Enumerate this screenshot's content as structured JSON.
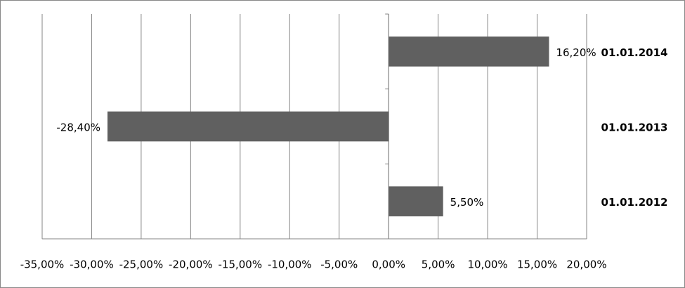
{
  "chart_data": {
    "type": "hbar",
    "categories": [
      "01.01.2012",
      "01.01.2013",
      "01.01.2014"
    ],
    "values": [
      5.5,
      -28.4,
      16.2
    ],
    "value_labels": [
      "5,50%",
      "-28,40%",
      "16,20%"
    ],
    "color": "#606060",
    "xlim": [
      -35,
      20
    ],
    "xticks": [
      {
        "value": -35,
        "label": "-35,00%"
      },
      {
        "value": -30,
        "label": "-30,00%"
      },
      {
        "value": -25,
        "label": "-25,00%"
      },
      {
        "value": -20,
        "label": "-20,00%"
      },
      {
        "value": -15,
        "label": "-15,00%"
      },
      {
        "value": -10,
        "label": "-10,00%"
      },
      {
        "value": -5,
        "label": "-5,00%"
      },
      {
        "value": 0,
        "label": "0,00%"
      },
      {
        "value": 5,
        "label": "5,00%"
      },
      {
        "value": 10,
        "label": "10,00%"
      },
      {
        "value": 15,
        "label": "15,00%"
      },
      {
        "value": 20,
        "label": "20,00%"
      }
    ],
    "grid": true
  }
}
